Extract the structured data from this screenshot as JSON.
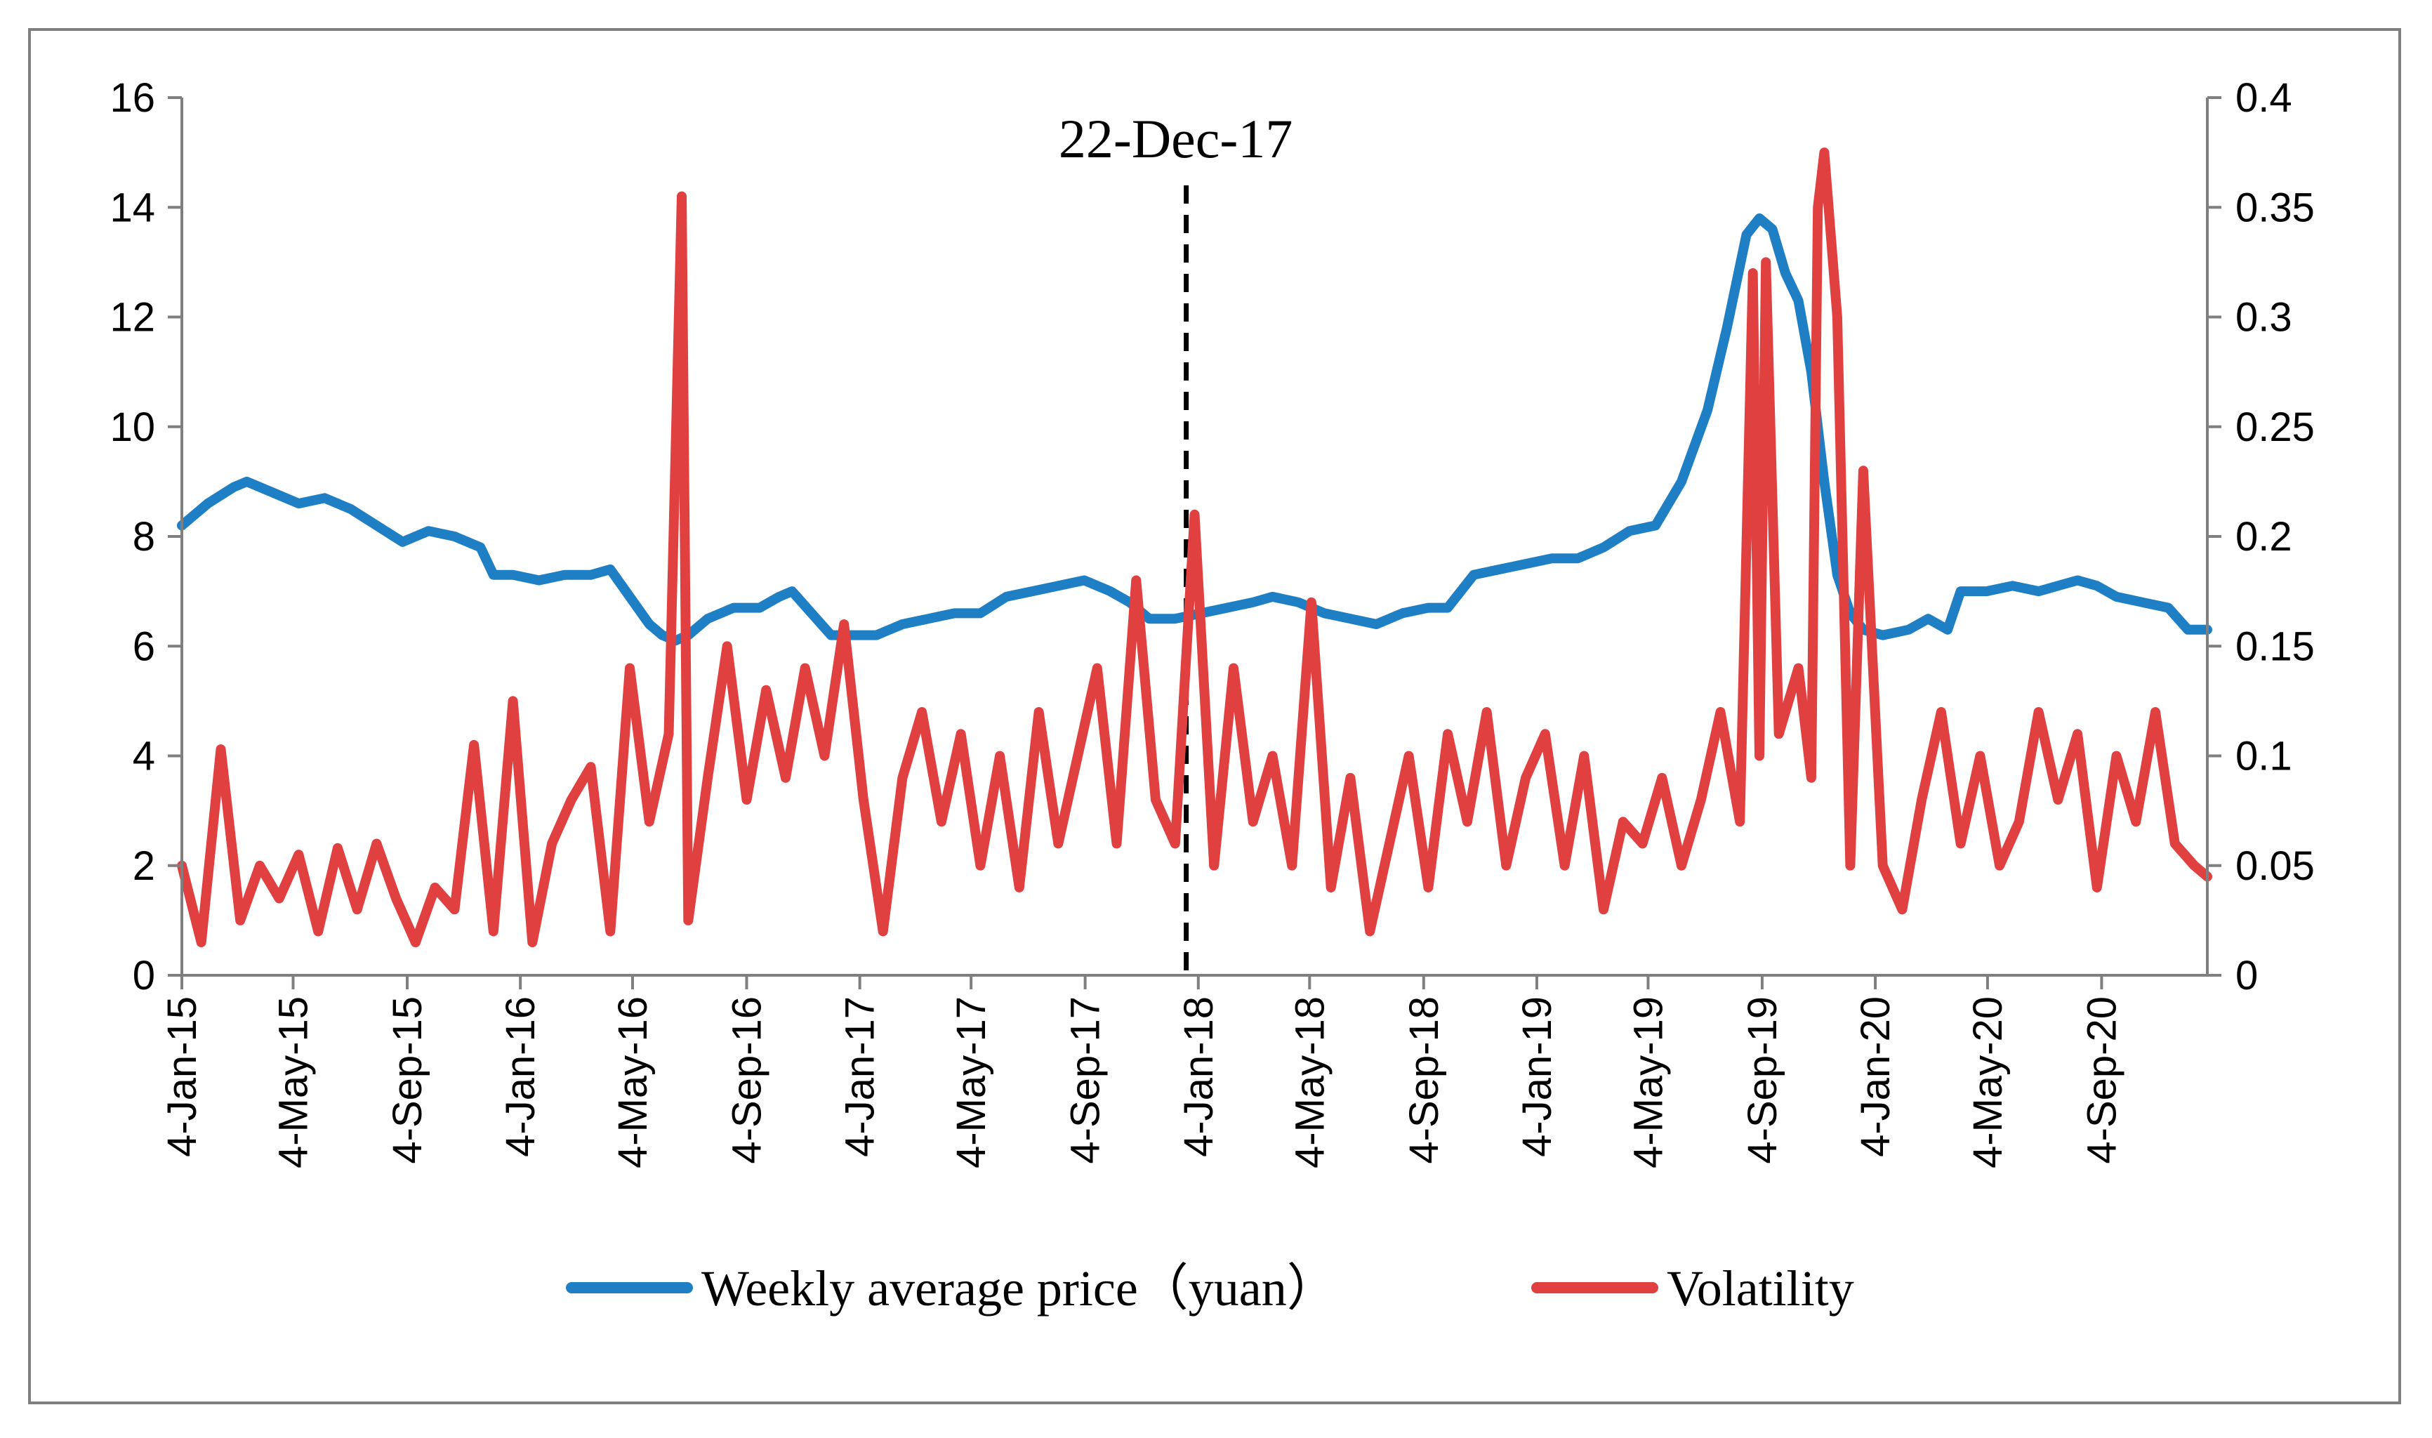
{
  "chart_data": {
    "type": "line",
    "title": "",
    "xlabel": "",
    "ylabel": "",
    "y2label": "",
    "x_tick_labels": [
      "4-Jan-15",
      "4-May-15",
      "4-Sep-15",
      "4-Jan-16",
      "4-May-16",
      "4-Sep-16",
      "4-Jan-17",
      "4-May-17",
      "4-Sep-17",
      "4-Jan-18",
      "4-May-18",
      "4-Sep-18",
      "4-Jan-19",
      "4-May-19",
      "4-Sep-19",
      "4-Jan-20",
      "4-May-20",
      "4-Sep-20"
    ],
    "x_tick_dates": [
      "2015-01-04",
      "2015-05-04",
      "2015-09-04",
      "2016-01-04",
      "2016-05-04",
      "2016-09-04",
      "2017-01-04",
      "2017-05-04",
      "2017-09-04",
      "2018-01-04",
      "2018-05-04",
      "2018-09-04",
      "2019-01-04",
      "2019-05-04",
      "2019-09-04",
      "2020-01-04",
      "2020-05-04",
      "2020-09-04"
    ],
    "xlim": [
      "2015-01-04",
      "2020-12-27"
    ],
    "ylim": [
      0,
      16
    ],
    "y_ticks": [
      "0",
      "2",
      "4",
      "6",
      "8",
      "10",
      "12",
      "14",
      "16"
    ],
    "y2lim": [
      0,
      0.4
    ],
    "y2_ticks": [
      "0",
      "0.05",
      "0.1",
      "0.15",
      "0.2",
      "0.25",
      "0.3",
      "0.35",
      "0.4"
    ],
    "grid": false,
    "legend_position": "bottom",
    "annotation": {
      "label": "22-Dec-17",
      "date": "2017-12-22",
      "style": "dashed vertical line"
    },
    "series": [
      {
        "name": "Weekly average price（yuan）",
        "axis": "left",
        "color": "#1f7fc4",
        "points": [
          [
            "2015-01-04",
            8.2
          ],
          [
            "2015-02-01",
            8.6
          ],
          [
            "2015-03-01",
            8.9
          ],
          [
            "2015-03-15",
            9.0
          ],
          [
            "2015-04-12",
            8.8
          ],
          [
            "2015-05-10",
            8.6
          ],
          [
            "2015-06-07",
            8.7
          ],
          [
            "2015-07-05",
            8.5
          ],
          [
            "2015-08-02",
            8.2
          ],
          [
            "2015-08-30",
            7.9
          ],
          [
            "2015-09-27",
            8.1
          ],
          [
            "2015-10-25",
            8.0
          ],
          [
            "2015-11-22",
            7.8
          ],
          [
            "2015-12-06",
            7.3
          ],
          [
            "2015-12-27",
            7.3
          ],
          [
            "2016-01-24",
            7.2
          ],
          [
            "2016-02-21",
            7.3
          ],
          [
            "2016-03-20",
            7.3
          ],
          [
            "2016-04-10",
            7.4
          ],
          [
            "2016-05-01",
            6.9
          ],
          [
            "2016-05-22",
            6.4
          ],
          [
            "2016-06-05",
            6.2
          ],
          [
            "2016-06-19",
            6.1
          ],
          [
            "2016-07-03",
            6.2
          ],
          [
            "2016-07-24",
            6.5
          ],
          [
            "2016-08-21",
            6.7
          ],
          [
            "2016-09-18",
            6.7
          ],
          [
            "2016-10-09",
            6.9
          ],
          [
            "2016-10-23",
            7.0
          ],
          [
            "2016-11-13",
            6.6
          ],
          [
            "2016-12-04",
            6.2
          ],
          [
            "2017-01-01",
            6.2
          ],
          [
            "2017-01-22",
            6.2
          ],
          [
            "2017-02-19",
            6.4
          ],
          [
            "2017-03-19",
            6.5
          ],
          [
            "2017-04-16",
            6.6
          ],
          [
            "2017-05-14",
            6.6
          ],
          [
            "2017-06-11",
            6.9
          ],
          [
            "2017-07-09",
            7.0
          ],
          [
            "2017-08-06",
            7.1
          ],
          [
            "2017-09-03",
            7.2
          ],
          [
            "2017-10-01",
            7.0
          ],
          [
            "2017-10-22",
            6.8
          ],
          [
            "2017-11-12",
            6.5
          ],
          [
            "2017-12-10",
            6.5
          ],
          [
            "2018-01-07",
            6.6
          ],
          [
            "2018-02-04",
            6.7
          ],
          [
            "2018-03-04",
            6.8
          ],
          [
            "2018-03-25",
            6.9
          ],
          [
            "2018-04-22",
            6.8
          ],
          [
            "2018-05-20",
            6.6
          ],
          [
            "2018-06-17",
            6.5
          ],
          [
            "2018-07-15",
            6.4
          ],
          [
            "2018-08-12",
            6.6
          ],
          [
            "2018-09-09",
            6.7
          ],
          [
            "2018-09-30",
            6.7
          ],
          [
            "2018-10-28",
            7.3
          ],
          [
            "2018-11-25",
            7.4
          ],
          [
            "2018-12-23",
            7.5
          ],
          [
            "2019-01-20",
            7.6
          ],
          [
            "2019-02-17",
            7.6
          ],
          [
            "2019-03-17",
            7.8
          ],
          [
            "2019-04-14",
            8.1
          ],
          [
            "2019-05-12",
            8.2
          ],
          [
            "2019-06-09",
            9.0
          ],
          [
            "2019-07-07",
            10.3
          ],
          [
            "2019-07-28",
            11.8
          ],
          [
            "2019-08-18",
            13.5
          ],
          [
            "2019-09-01",
            13.8
          ],
          [
            "2019-09-15",
            13.6
          ],
          [
            "2019-09-29",
            12.8
          ],
          [
            "2019-10-13",
            12.3
          ],
          [
            "2019-10-27",
            11.0
          ],
          [
            "2019-11-10",
            9.0
          ],
          [
            "2019-11-24",
            7.3
          ],
          [
            "2019-12-08",
            6.6
          ],
          [
            "2019-12-22",
            6.3
          ],
          [
            "2020-01-12",
            6.2
          ],
          [
            "2020-02-09",
            6.3
          ],
          [
            "2020-03-01",
            6.5
          ],
          [
            "2020-03-22",
            6.3
          ],
          [
            "2020-04-05",
            7.0
          ],
          [
            "2020-05-03",
            7.0
          ],
          [
            "2020-05-31",
            7.1
          ],
          [
            "2020-06-28",
            7.0
          ],
          [
            "2020-07-19",
            7.1
          ],
          [
            "2020-08-09",
            7.2
          ],
          [
            "2020-08-30",
            7.1
          ],
          [
            "2020-09-20",
            6.9
          ],
          [
            "2020-10-18",
            6.8
          ],
          [
            "2020-11-15",
            6.7
          ],
          [
            "2020-12-06",
            6.3
          ],
          [
            "2020-12-27",
            6.3
          ]
        ]
      },
      {
        "name": "Volatility",
        "axis": "right",
        "color": "#e04040",
        "points": [
          [
            "2015-01-04",
            0.05
          ],
          [
            "2015-01-25",
            0.015
          ],
          [
            "2015-02-15",
            0.103
          ],
          [
            "2015-03-08",
            0.025
          ],
          [
            "2015-03-29",
            0.05
          ],
          [
            "2015-04-19",
            0.035
          ],
          [
            "2015-05-10",
            0.055
          ],
          [
            "2015-05-31",
            0.02
          ],
          [
            "2015-06-21",
            0.058
          ],
          [
            "2015-07-12",
            0.03
          ],
          [
            "2015-08-02",
            0.06
          ],
          [
            "2015-08-23",
            0.035
          ],
          [
            "2015-09-13",
            0.015
          ],
          [
            "2015-10-04",
            0.04
          ],
          [
            "2015-10-25",
            0.03
          ],
          [
            "2015-11-15",
            0.105
          ],
          [
            "2015-12-06",
            0.02
          ],
          [
            "2015-12-27",
            0.125
          ],
          [
            "2016-01-17",
            0.015
          ],
          [
            "2016-02-07",
            0.06
          ],
          [
            "2016-02-28",
            0.08
          ],
          [
            "2016-03-20",
            0.095
          ],
          [
            "2016-04-10",
            0.02
          ],
          [
            "2016-05-01",
            0.14
          ],
          [
            "2016-05-22",
            0.07
          ],
          [
            "2016-06-12",
            0.11
          ],
          [
            "2016-06-26",
            0.355
          ],
          [
            "2016-07-03",
            0.025
          ],
          [
            "2016-07-24",
            0.09
          ],
          [
            "2016-08-14",
            0.15
          ],
          [
            "2016-09-04",
            0.08
          ],
          [
            "2016-09-25",
            0.13
          ],
          [
            "2016-10-16",
            0.09
          ],
          [
            "2016-11-06",
            0.14
          ],
          [
            "2016-11-27",
            0.1
          ],
          [
            "2016-12-18",
            0.16
          ],
          [
            "2017-01-08",
            0.08
          ],
          [
            "2017-01-29",
            0.02
          ],
          [
            "2017-02-19",
            0.09
          ],
          [
            "2017-03-12",
            0.12
          ],
          [
            "2017-04-02",
            0.07
          ],
          [
            "2017-04-23",
            0.11
          ],
          [
            "2017-05-14",
            0.05
          ],
          [
            "2017-06-04",
            0.1
          ],
          [
            "2017-06-25",
            0.04
          ],
          [
            "2017-07-16",
            0.12
          ],
          [
            "2017-08-06",
            0.06
          ],
          [
            "2017-08-27",
            0.1
          ],
          [
            "2017-09-17",
            0.14
          ],
          [
            "2017-10-08",
            0.06
          ],
          [
            "2017-10-29",
            0.18
          ],
          [
            "2017-11-19",
            0.08
          ],
          [
            "2017-12-10",
            0.06
          ],
          [
            "2017-12-31",
            0.21
          ],
          [
            "2018-01-21",
            0.05
          ],
          [
            "2018-02-11",
            0.14
          ],
          [
            "2018-03-04",
            0.07
          ],
          [
            "2018-03-25",
            0.1
          ],
          [
            "2018-04-15",
            0.05
          ],
          [
            "2018-05-06",
            0.17
          ],
          [
            "2018-05-27",
            0.04
          ],
          [
            "2018-06-17",
            0.09
          ],
          [
            "2018-07-08",
            0.02
          ],
          [
            "2018-07-29",
            0.06
          ],
          [
            "2018-08-19",
            0.1
          ],
          [
            "2018-09-09",
            0.04
          ],
          [
            "2018-09-30",
            0.11
          ],
          [
            "2018-10-21",
            0.07
          ],
          [
            "2018-11-11",
            0.12
          ],
          [
            "2018-12-02",
            0.05
          ],
          [
            "2018-12-23",
            0.09
          ],
          [
            "2019-01-13",
            0.11
          ],
          [
            "2019-02-03",
            0.05
          ],
          [
            "2019-02-24",
            0.1
          ],
          [
            "2019-03-17",
            0.03
          ],
          [
            "2019-04-07",
            0.07
          ],
          [
            "2019-04-28",
            0.06
          ],
          [
            "2019-05-19",
            0.09
          ],
          [
            "2019-06-09",
            0.05
          ],
          [
            "2019-06-30",
            0.08
          ],
          [
            "2019-07-21",
            0.12
          ],
          [
            "2019-08-11",
            0.07
          ],
          [
            "2019-08-25",
            0.32
          ],
          [
            "2019-09-01",
            0.1
          ],
          [
            "2019-09-08",
            0.325
          ],
          [
            "2019-09-22",
            0.11
          ],
          [
            "2019-10-13",
            0.14
          ],
          [
            "2019-10-27",
            0.09
          ],
          [
            "2019-11-03",
            0.35
          ],
          [
            "2019-11-10",
            0.375
          ],
          [
            "2019-11-24",
            0.3
          ],
          [
            "2019-12-08",
            0.05
          ],
          [
            "2019-12-22",
            0.23
          ],
          [
            "2020-01-12",
            0.05
          ],
          [
            "2020-02-02",
            0.03
          ],
          [
            "2020-02-23",
            0.08
          ],
          [
            "2020-03-15",
            0.12
          ],
          [
            "2020-04-05",
            0.06
          ],
          [
            "2020-04-26",
            0.1
          ],
          [
            "2020-05-17",
            0.05
          ],
          [
            "2020-06-07",
            0.07
          ],
          [
            "2020-06-28",
            0.12
          ],
          [
            "2020-07-19",
            0.08
          ],
          [
            "2020-08-09",
            0.11
          ],
          [
            "2020-08-30",
            0.04
          ],
          [
            "2020-09-20",
            0.1
          ],
          [
            "2020-10-11",
            0.07
          ],
          [
            "2020-11-01",
            0.12
          ],
          [
            "2020-11-22",
            0.06
          ],
          [
            "2020-12-13",
            0.05
          ],
          [
            "2020-12-27",
            0.045
          ]
        ]
      }
    ]
  }
}
